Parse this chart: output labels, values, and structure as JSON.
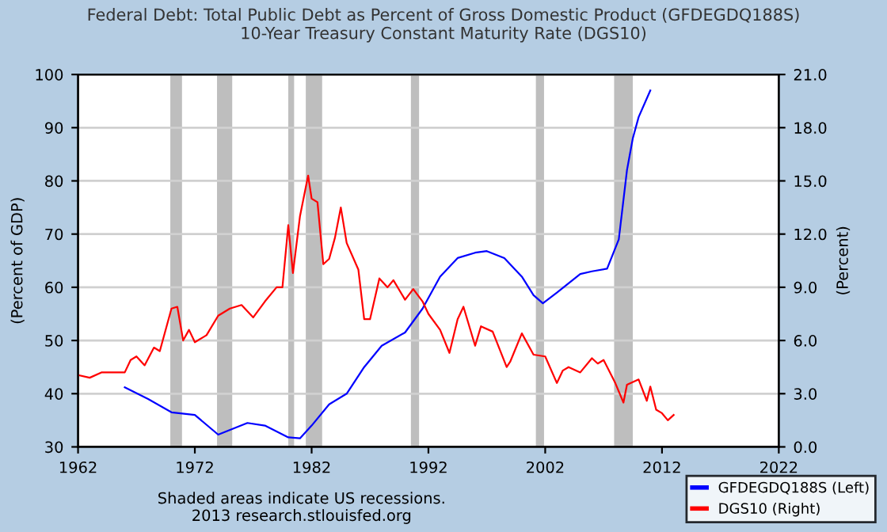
{
  "chart_data": {
    "type": "line",
    "title": "Federal Debt: Total Public Debt as Percent of Gross Domestic Product (GFDEGDQ188S)\n10-Year Treasury Constant Maturity Rate (DGS10)",
    "ylabel": "(Percent of GDP)",
    "y2label": "(Percent)",
    "annotations": [
      "Shaded areas indicate US recessions.\n2013 research.stlouisfed.org"
    ],
    "xlim": [
      1962,
      2022
    ],
    "xticks": [
      1962,
      1972,
      1982,
      1992,
      2002,
      2012,
      2022
    ],
    "ylim": [
      30,
      100
    ],
    "yticks": [
      30,
      40,
      50,
      60,
      70,
      80,
      90,
      100
    ],
    "y2lim": [
      0,
      21
    ],
    "y2ticks": [
      {
        "value": 0,
        "label": "0.0"
      },
      {
        "value": 3,
        "label": "3.0"
      },
      {
        "value": 6,
        "label": "6.0"
      },
      {
        "value": 9,
        "label": "9.0"
      },
      {
        "value": 12,
        "label": "12.0"
      },
      {
        "value": 15,
        "label": "15.0"
      },
      {
        "value": 18,
        "label": "18.0"
      },
      {
        "value": 21,
        "label": "21.0"
      }
    ],
    "grid": "y",
    "legend": "bottom right",
    "bands": [
      {
        "axis": "x",
        "from": 1969.9,
        "to": 1970.9,
        "color": "#bebebe"
      },
      {
        "axis": "x",
        "from": 1973.9,
        "to": 1975.2,
        "color": "#bebebe"
      },
      {
        "axis": "x",
        "from": 1980.0,
        "to": 1980.5,
        "color": "#bebebe"
      },
      {
        "axis": "x",
        "from": 1981.5,
        "to": 1982.9,
        "color": "#bebebe"
      },
      {
        "axis": "x",
        "from": 1990.5,
        "to": 1991.2,
        "color": "#bebebe"
      },
      {
        "axis": "x",
        "from": 2001.2,
        "to": 2001.9,
        "color": "#bebebe"
      },
      {
        "axis": "x",
        "from": 2007.9,
        "to": 2009.5,
        "color": "#bebebe"
      }
    ],
    "series": [
      {
        "name": "GFDEGDQ188S (Left)",
        "color": "#0000ff",
        "x": [
          1966,
          1968,
          1970,
          1972,
          1974,
          1976.5,
          1978,
          1980,
          1981,
          1982,
          1983.5,
          1985,
          1986.5,
          1988,
          1990,
          1991.5,
          1993,
          1994.5,
          1996,
          1997,
          1998.5,
          2000,
          2001,
          2001.8,
          2003,
          2005,
          2006,
          2007.3,
          2008.3,
          2009,
          2009.5,
          2010,
          2011
        ],
        "values": [
          41.2,
          39,
          36.5,
          36,
          32.3,
          34.5,
          34,
          31.8,
          31.6,
          34,
          38,
          40,
          45,
          49,
          51.5,
          56,
          62,
          65.5,
          66.5,
          66.8,
          65.5,
          62,
          58.5,
          57,
          59,
          62.5,
          63,
          63.5,
          69,
          82,
          88,
          92,
          97
        ]
      },
      {
        "name": "DGS10 (Right)",
        "color": "#ff0000",
        "axis": "y2",
        "x": [
          1962,
          1963,
          1964,
          1966,
          1966.5,
          1967,
          1967.7,
          1968.5,
          1969,
          1970,
          1970.5,
          1971,
          1971.5,
          1972,
          1973,
          1974,
          1975,
          1976,
          1977,
          1978,
          1979,
          1979.5,
          1980,
          1980.4,
          1981,
          1981.7,
          1982,
          1982.5,
          1983,
          1983.5,
          1984,
          1984.5,
          1985,
          1986,
          1986.5,
          1987,
          1987.8,
          1988.5,
          1989,
          1990,
          1990.7,
          1991.5,
          1992,
          1993,
          1993.8,
          1994.5,
          1995,
          1996,
          1996.5,
          1997.5,
          1998.7,
          1999,
          2000,
          2001,
          2002,
          2003,
          2003.5,
          2004,
          2005,
          2006,
          2006.5,
          2007,
          2008,
          2008.7,
          2009,
          2010,
          2010.7,
          2011,
          2011.5,
          2012,
          2012.5,
          2013
        ],
        "values": [
          4.05,
          3.9,
          4.2,
          4.2,
          4.9,
          5.1,
          4.6,
          5.6,
          5.4,
          7.8,
          7.9,
          6.0,
          6.6,
          5.9,
          6.3,
          7.4,
          7.8,
          8.0,
          7.3,
          8.2,
          9.0,
          9.0,
          12.5,
          9.8,
          13.0,
          15.3,
          14.0,
          13.8,
          10.3,
          10.6,
          11.8,
          13.5,
          11.5,
          10.0,
          7.2,
          7.2,
          9.5,
          9.0,
          9.4,
          8.3,
          8.9,
          8.2,
          7.5,
          6.6,
          5.3,
          7.2,
          7.9,
          5.7,
          6.8,
          6.5,
          4.5,
          4.8,
          6.4,
          5.2,
          5.1,
          3.6,
          4.3,
          4.5,
          4.2,
          5.0,
          4.7,
          4.9,
          3.6,
          2.5,
          3.5,
          3.8,
          2.6,
          3.4,
          2.1,
          1.9,
          1.5,
          1.8
        ]
      }
    ]
  }
}
